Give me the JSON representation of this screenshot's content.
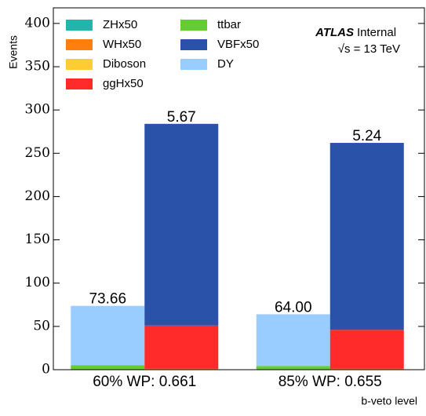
{
  "chart_data": {
    "type": "stacked_grouped_bar",
    "categories": [
      "60% WP: 0.661",
      "85% WP: 0.655"
    ],
    "x_label": "b-veto level",
    "y_label": "Events",
    "annotations": [
      "ATLAS",
      "Internal",
      "√s = 13 TeV"
    ],
    "series": [
      {
        "name": "ZHx50",
        "color": "#22b5ac",
        "bar": "right",
        "values": [
          0.5,
          0.5
        ]
      },
      {
        "name": "WHx50",
        "color": "#ff7f0e",
        "bar": "right",
        "values": [
          0.5,
          0.5
        ]
      },
      {
        "name": "Diboson",
        "color": "#ffcc33",
        "bar": "left",
        "values": [
          0.3,
          0.3
        ]
      },
      {
        "name": "ggHx50",
        "color": "#ff2a2a",
        "bar": "right",
        "values": [
          50,
          45
        ]
      },
      {
        "name": "ttbar",
        "color": "#66cc33",
        "bar": "left",
        "values": [
          5,
          4
        ]
      },
      {
        "name": "VBFx50",
        "color": "#2a52a8",
        "bar": "right",
        "values": [
          233,
          216
        ]
      },
      {
        "name": "DY",
        "color": "#99ccff",
        "bar": "left",
        "values": [
          68.4,
          59.7
        ]
      }
    ],
    "totals": {
      "left": {
        "values": [
          73.66,
          64.0
        ],
        "value_labels": [
          "73.66",
          "64.00"
        ]
      },
      "right": {
        "values": [
          5.67,
          5.24
        ],
        "value_labels": [
          "5.67",
          "5.24"
        ]
      }
    },
    "ylim": [
      0,
      418
    ],
    "yticks": [
      0,
      50,
      100,
      150,
      200,
      250,
      300,
      350,
      400
    ],
    "legend": "upper left",
    "grid": false
  }
}
